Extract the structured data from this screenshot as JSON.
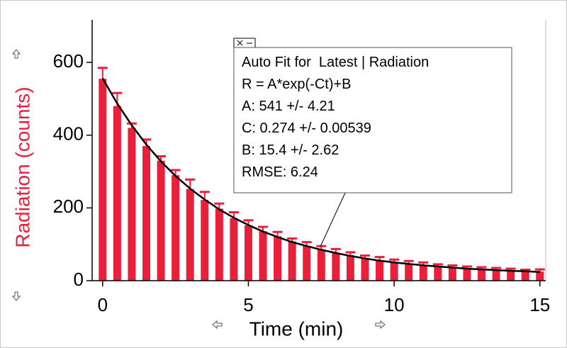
{
  "chart_data": {
    "type": "bar",
    "x_label": "Time (min)",
    "y_label": "Radiation (counts)",
    "x": [
      0,
      0.5,
      1,
      1.5,
      2,
      2.5,
      3,
      3.5,
      4,
      4.5,
      5,
      5.5,
      6,
      6.5,
      7,
      7.5,
      8,
      8.5,
      9,
      9.5,
      10,
      10.5,
      11,
      11.5,
      12,
      12.5,
      13,
      13.5,
      14,
      14.5,
      15
    ],
    "bars": {
      "color": "#e8203c",
      "values": [
        555,
        480,
        420,
        370,
        330,
        290,
        252,
        222,
        198,
        172,
        152,
        136,
        122,
        108,
        96,
        85,
        77,
        70,
        61,
        55,
        50,
        46,
        42,
        39,
        36,
        33,
        31,
        29,
        27,
        26,
        25
      ],
      "errors": [
        30,
        36,
        12,
        18,
        12,
        14,
        26,
        22,
        14,
        16,
        14,
        12,
        12,
        8,
        10,
        10,
        10,
        8,
        8,
        10,
        8,
        8,
        8,
        6,
        6,
        6,
        6,
        6,
        6,
        4,
        6
      ]
    },
    "fit": {
      "color": "#000000",
      "values": [
        556,
        487,
        427,
        374,
        328,
        288,
        253,
        223,
        196,
        173,
        153,
        135,
        120,
        106,
        95,
        85,
        76,
        68,
        61,
        55,
        50,
        46,
        42,
        39,
        36,
        33,
        31,
        29,
        27,
        26,
        24
      ]
    },
    "xlim": [
      -0.36,
      15.2
    ],
    "ylim": [
      0,
      717
    ],
    "xticks": [
      0,
      5,
      10,
      15
    ],
    "yticks": [
      0,
      200,
      400,
      600
    ],
    "annotation": [
      "Auto Fit for  Latest | Radiation",
      "R = A*exp(-Ct)+B",
      "A: 541 +/- 4.21",
      "C: 0.274 +/- 0.00539",
      "B: 15.4 +/- 2.62",
      "RMSE: 6.24"
    ]
  }
}
